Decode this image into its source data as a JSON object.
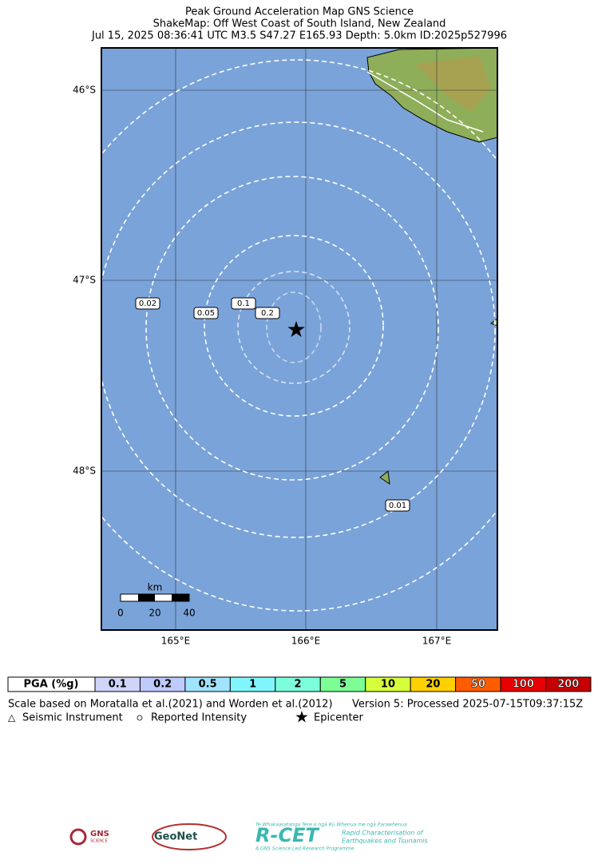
{
  "header": {
    "title_lines": [
      "Peak Ground Acceleration Map GNS Science",
      "ShakeMap: Off West Coast of South Island, New Zealand",
      "Jul 15, 2025 08:36:41 UTC M3.5 S47.27 E165.93 Depth: 5.0km ID:2025p527996"
    ]
  },
  "map": {
    "lat_labels": [
      "46°S",
      "47°S",
      "48°S"
    ],
    "lon_labels": [
      "165°E",
      "166°E",
      "167°E"
    ],
    "contour_labels": [
      "0.02",
      "0.05",
      "0.1",
      "0.2",
      "0.01"
    ],
    "scale_bar": {
      "unit": "km",
      "ticks": [
        "0",
        "20",
        "40"
      ]
    }
  },
  "legend": {
    "title": "PGA (%g)",
    "bins": [
      {
        "label": "0.1",
        "color": "#d0d4f8"
      },
      {
        "label": "0.2",
        "color": "#bfcaff"
      },
      {
        "label": "0.5",
        "color": "#a0e4ff"
      },
      {
        "label": "1",
        "color": "#82f6ff"
      },
      {
        "label": "2",
        "color": "#7dffdc"
      },
      {
        "label": "5",
        "color": "#7dff96"
      },
      {
        "label": "10",
        "color": "#d6ff3c"
      },
      {
        "label": "20",
        "color": "#ffd100"
      },
      {
        "label": "50",
        "color": "#ff5c00"
      },
      {
        "label": "100",
        "color": "#e80000"
      },
      {
        "label": "200",
        "color": "#c60000"
      }
    ],
    "scale_note": "Scale based on Moratalla et al.(2021) and Worden et al.(2012)",
    "version_note": "Version 5: Processed 2025-07-15T09:37:15Z",
    "symbols": [
      "Seismic Instrument",
      "Reported Intensity",
      "Epicenter"
    ]
  },
  "logos": {
    "gns": "GNS",
    "gns_sub": "SCIENCE",
    "geonet": "GeoNet",
    "rcet_top": "Te Whakaaratanga Tere o ngā Rū Whenua me ngā Parawhenua",
    "rcet": "R-CET",
    "rcet_desc1": "Rapid Characterisation of",
    "rcet_desc2": "Earthquakes and Tsunamis",
    "rcet_bottom": "A GNS Science Led Research Programme"
  }
}
